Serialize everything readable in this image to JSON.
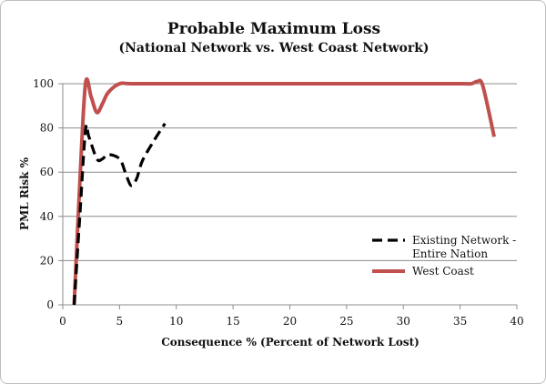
{
  "chart_data": {
    "type": "line",
    "title": "Probable Maximum Loss",
    "subtitle": "(National Network vs. West Coast Network)",
    "xlabel": "Consequence % (Percent of Network Lost)",
    "ylabel": "PML Risk %",
    "xlim": [
      0,
      40
    ],
    "ylim": [
      0,
      100
    ],
    "xticks": [
      0,
      5,
      10,
      15,
      20,
      25,
      30,
      35,
      40
    ],
    "yticks": [
      0,
      20,
      40,
      60,
      80,
      100
    ],
    "grid": "horizontal",
    "legend_position": "right",
    "series": [
      {
        "name_lines": [
          "Existing Network -",
          "Entire Nation"
        ],
        "name": "Existing Network - Entire Nation",
        "color": "#000000",
        "style": "dashed",
        "x": [
          1,
          1.5,
          2,
          2.3,
          3,
          3.5,
          4,
          5,
          5.5,
          6,
          6.5,
          7,
          8,
          9
        ],
        "y": [
          0,
          40,
          79,
          76,
          66,
          66,
          68,
          66,
          60,
          54,
          57,
          65,
          74,
          82
        ]
      },
      {
        "name": "West Coast",
        "color": "#c0504d",
        "style": "solid",
        "x": [
          1,
          1.5,
          2,
          2.5,
          3,
          3.5,
          4,
          5,
          6,
          10,
          20,
          30,
          35,
          36,
          36.5,
          37,
          38
        ],
        "y": [
          0,
          55,
          100,
          94,
          87,
          91,
          96,
          100,
          100,
          100,
          100,
          100,
          100,
          100,
          101,
          99,
          76
        ]
      }
    ]
  }
}
